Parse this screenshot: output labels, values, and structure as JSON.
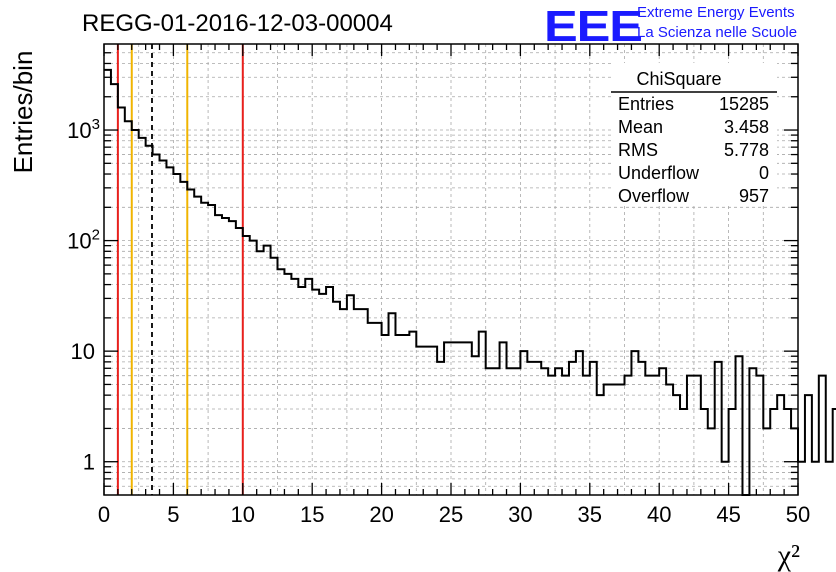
{
  "header": {
    "run_title": "REGG-01-2016-12-03-00004",
    "logo_text": "EEE",
    "logo_line1": "Extreme Energy Events",
    "logo_line2": "La Scienza nelle Scuole",
    "logo_color": "#1a1aff"
  },
  "chart_data": {
    "type": "histogram",
    "title": "REGG-01-2016-12-03-00004",
    "xlabel": "χ²",
    "ylabel": "Entries/bin",
    "xlim": [
      0,
      50
    ],
    "ylim": [
      0.5,
      6000
    ],
    "yscale": "log",
    "grid": true,
    "bin_width": 0.5,
    "x_ticks": [
      0,
      5,
      10,
      15,
      20,
      25,
      30,
      35,
      40,
      45,
      50
    ],
    "y_ticks": [
      {
        "value": 1,
        "label": "1"
      },
      {
        "value": 10,
        "label": "10"
      },
      {
        "value": 100,
        "label": "10",
        "exp": "2"
      },
      {
        "value": 1000,
        "label": "10",
        "exp": "3"
      }
    ],
    "values": [
      3500,
      2600,
      1600,
      1200,
      1000,
      850,
      720,
      600,
      530,
      460,
      400,
      340,
      290,
      250,
      220,
      210,
      170,
      160,
      150,
      130,
      110,
      100,
      80,
      90,
      70,
      55,
      50,
      45,
      38,
      45,
      36,
      33,
      38,
      28,
      24,
      32,
      24,
      24,
      18,
      18,
      14,
      22,
      14,
      14,
      15,
      11,
      11,
      11,
      8,
      12,
      12,
      12,
      12,
      9,
      15,
      7,
      7,
      12,
      7,
      7,
      10,
      8,
      8,
      7,
      6,
      7,
      6,
      8,
      10,
      6,
      8,
      4,
      5,
      5,
      5,
      6,
      10,
      8,
      6,
      6,
      7,
      5,
      4,
      3,
      6,
      6,
      3,
      2,
      8,
      1,
      3,
      9,
      0,
      7,
      6,
      2,
      3,
      4,
      3,
      2,
      1,
      4,
      1,
      6,
      1,
      3
    ],
    "vertical_lines": [
      {
        "x": 1,
        "color": "#e8201c",
        "style": "solid"
      },
      {
        "x": 2,
        "color": "#f0b400",
        "style": "solid"
      },
      {
        "x": 3.458,
        "color": "#000000",
        "style": "dashed"
      },
      {
        "x": 6,
        "color": "#f0b400",
        "style": "solid"
      },
      {
        "x": 10,
        "color": "#e8201c",
        "style": "solid"
      }
    ],
    "stats_box": {
      "title": "ChiSquare",
      "rows": [
        {
          "label": "Entries",
          "value": "15285"
        },
        {
          "label": "Mean",
          "value": "3.458"
        },
        {
          "label": "RMS",
          "value": "5.778"
        },
        {
          "label": "Underflow",
          "value": "0"
        },
        {
          "label": "Overflow",
          "value": "957"
        }
      ]
    }
  }
}
